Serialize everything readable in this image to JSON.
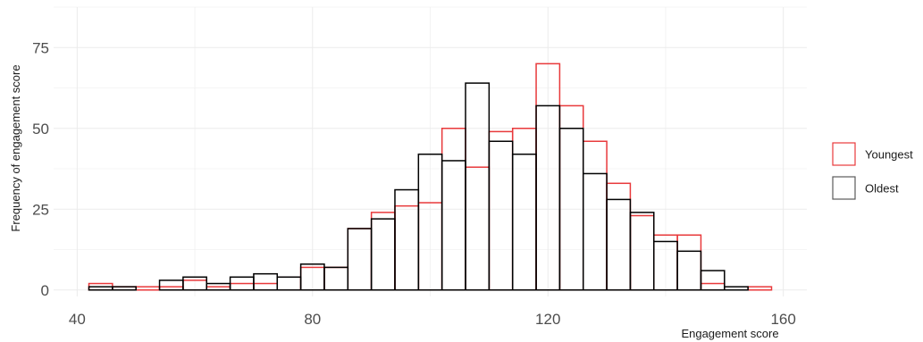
{
  "chart_data": {
    "type": "bar",
    "subtype": "overlaid-histogram",
    "title": "",
    "xlabel": "Engagement score",
    "ylabel": "Frequency of engagement score",
    "xlim": [
      36,
      164
    ],
    "ylim": [
      -2,
      87.5
    ],
    "x_ticks": [
      40,
      80,
      120,
      160
    ],
    "y_ticks": [
      0,
      25,
      50,
      75
    ],
    "grid": true,
    "legend_position": "right",
    "bin_width": 4,
    "bin_starts": [
      42,
      46,
      50,
      54,
      58,
      62,
      66,
      70,
      74,
      78,
      82,
      86,
      90,
      94,
      98,
      102,
      106,
      110,
      114,
      118,
      122,
      126,
      130,
      134,
      138,
      142,
      146,
      150,
      154
    ],
    "series": [
      {
        "name": "Youngest",
        "color": "#e8393b",
        "values": [
          2,
          1,
          1,
          1,
          3,
          1,
          2,
          2,
          4,
          7,
          7,
          19,
          24,
          26,
          27,
          50,
          38,
          49,
          50,
          70,
          57,
          46,
          33,
          23,
          17,
          17,
          2,
          0,
          1
        ]
      },
      {
        "name": "Oldest",
        "color": "#000000",
        "values": [
          1,
          1,
          0,
          3,
          4,
          2,
          4,
          5,
          4,
          8,
          7,
          19,
          22,
          31,
          42,
          40,
          64,
          46,
          42,
          57,
          50,
          36,
          28,
          24,
          15,
          12,
          6,
          1,
          0
        ]
      }
    ]
  }
}
